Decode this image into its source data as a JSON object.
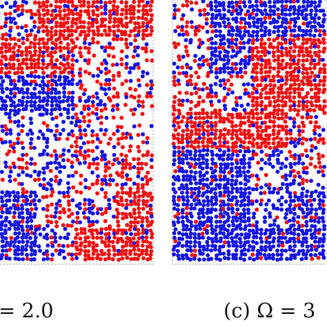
{
  "panels": [
    {
      "caption": "= 2.0"
    },
    {
      "caption": "(c) Ω = 3"
    }
  ]
}
